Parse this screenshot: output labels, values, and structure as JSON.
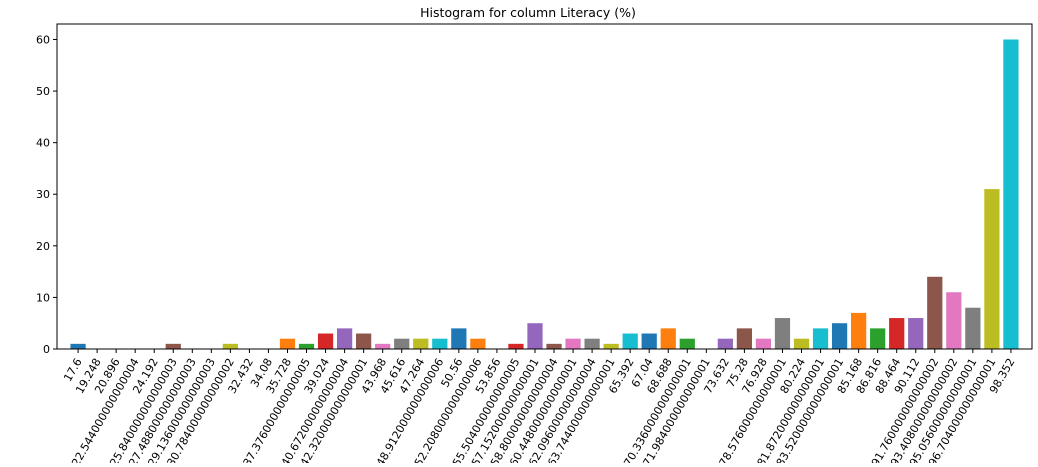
{
  "chart_data": {
    "type": "bar",
    "title": "Histogram for column Literacy (%)",
    "xlabel": "",
    "ylabel": "",
    "ylim": [
      0,
      63
    ],
    "yticks": [
      0,
      10,
      20,
      30,
      40,
      50,
      60
    ],
    "grid": false,
    "legend": "none",
    "bin_start": 17.6,
    "bin_width": 1.648,
    "bins": 50,
    "values": [
      1,
      0,
      0,
      0,
      0,
      1,
      0,
      0,
      1,
      0,
      0,
      2,
      1,
      3,
      4,
      3,
      1,
      2,
      2,
      2,
      4,
      2,
      0,
      1,
      5,
      1,
      2,
      2,
      1,
      3,
      3,
      4,
      2,
      0,
      2,
      4,
      2,
      6,
      2,
      4,
      5,
      7,
      4,
      6,
      6,
      14,
      11,
      8,
      31,
      60
    ],
    "x_tick_labels": [
      {
        "x": 17.6,
        "label": "17.6"
      },
      {
        "x": 19.248,
        "label": "19.248"
      },
      {
        "x": 20.896,
        "label": "20.896"
      },
      {
        "x": 22.544,
        "label": "22.544000000000004"
      },
      {
        "x": 24.192,
        "label": "24.192"
      },
      {
        "x": 25.84,
        "label": "25.840000000000003"
      },
      {
        "x": 27.488,
        "label": "27.488000000000003"
      },
      {
        "x": 29.136,
        "label": "29.136000000000003"
      },
      {
        "x": 30.784,
        "label": "30.784000000000002"
      },
      {
        "x": 32.432,
        "label": "32.432"
      },
      {
        "x": 34.08,
        "label": "34.08"
      },
      {
        "x": 35.728,
        "label": "35.728"
      },
      {
        "x": 37.376,
        "label": "37.376000000000005"
      },
      {
        "x": 39.024,
        "label": "39.024"
      },
      {
        "x": 40.672,
        "label": "40.672000000000004"
      },
      {
        "x": 42.32,
        "label": "42.320000000000001"
      },
      {
        "x": 43.968,
        "label": "43.968"
      },
      {
        "x": 45.616,
        "label": "45.616"
      },
      {
        "x": 47.264,
        "label": "47.264"
      },
      {
        "x": 48.912,
        "label": "48.912000000000006"
      },
      {
        "x": 50.56,
        "label": "50.56"
      },
      {
        "x": 52.208,
        "label": "52.208000000000006"
      },
      {
        "x": 53.856,
        "label": "53.856"
      },
      {
        "x": 55.504,
        "label": "55.504000000000005"
      },
      {
        "x": 57.152,
        "label": "57.152000000000001"
      },
      {
        "x": 58.8,
        "label": "58.800000000000004"
      },
      {
        "x": 60.448,
        "label": "60.448000000000001"
      },
      {
        "x": 62.096,
        "label": "62.096000000000004"
      },
      {
        "x": 63.744,
        "label": "63.744000000000001"
      },
      {
        "x": 65.392,
        "label": "65.392"
      },
      {
        "x": 67.04,
        "label": "67.04"
      },
      {
        "x": 68.688,
        "label": "68.688"
      },
      {
        "x": 70.336,
        "label": "70.336000000000001"
      },
      {
        "x": 71.984,
        "label": "71.984000000000001"
      },
      {
        "x": 73.632,
        "label": "73.632"
      },
      {
        "x": 75.28,
        "label": "75.28"
      },
      {
        "x": 76.928,
        "label": "76.928"
      },
      {
        "x": 78.576,
        "label": "78.576000000000001"
      },
      {
        "x": 80.224,
        "label": "80.224"
      },
      {
        "x": 81.872,
        "label": "81.872000000000001"
      },
      {
        "x": 83.52,
        "label": "83.520000000000001"
      },
      {
        "x": 85.168,
        "label": "85.168"
      },
      {
        "x": 86.816,
        "label": "86.816"
      },
      {
        "x": 88.464,
        "label": "88.464"
      },
      {
        "x": 90.112,
        "label": "90.112"
      },
      {
        "x": 91.76,
        "label": "91.760000000000002"
      },
      {
        "x": 93.408,
        "label": "93.408000000000002"
      },
      {
        "x": 95.056,
        "label": "95.056000000000001"
      },
      {
        "x": 96.704,
        "label": "96.704000000000001"
      },
      {
        "x": 98.352,
        "label": "98.352"
      }
    ],
    "colors": [
      "#1f77b4",
      "#ff7f0e",
      "#2ca02c",
      "#d62728",
      "#9467bd",
      "#8c564b",
      "#e377c2",
      "#7f7f7f",
      "#bcbd22",
      "#17becf"
    ]
  }
}
